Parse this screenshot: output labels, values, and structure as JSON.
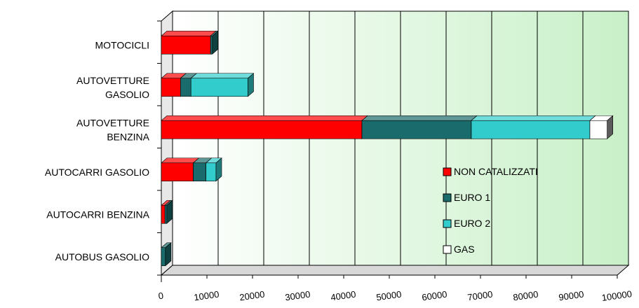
{
  "chart_data": {
    "type": "bar",
    "orientation": "horizontal",
    "stacked": true,
    "three_d": true,
    "categories": [
      [
        "MOTOCICLI"
      ],
      [
        "AUTOVETTURE",
        "GASOLIO"
      ],
      [
        "AUTOVETTURE",
        "BENZINA"
      ],
      [
        "AUTOCARRI GASOLIO"
      ],
      [
        "AUTOCARRI BENZINA"
      ],
      [
        "AUTOBUS GASOLIO"
      ]
    ],
    "series": [
      {
        "name": "NON CATALIZZATI",
        "color": "#ff0000",
        "values": [
          10800,
          4200,
          44000,
          7000,
          800,
          0
        ]
      },
      {
        "name": "EURO 1",
        "color": "#1a6b6b",
        "values": [
          400,
          2300,
          24000,
          2800,
          400,
          900
        ]
      },
      {
        "name": "EURO 2",
        "color": "#33cccc",
        "values": [
          0,
          12500,
          26000,
          2200,
          0,
          0
        ]
      },
      {
        "name": "GAS",
        "color": "#ffffff",
        "values": [
          0,
          0,
          3800,
          0,
          0,
          0
        ]
      }
    ],
    "x_ticks": [
      "0",
      "10000",
      "20000",
      "30000",
      "40000",
      "50000",
      "60000",
      "70000",
      "80000",
      "90000",
      "100000"
    ],
    "xlim": [
      0,
      100000
    ],
    "grid": true,
    "legend_position": "lower-right inside plot"
  }
}
